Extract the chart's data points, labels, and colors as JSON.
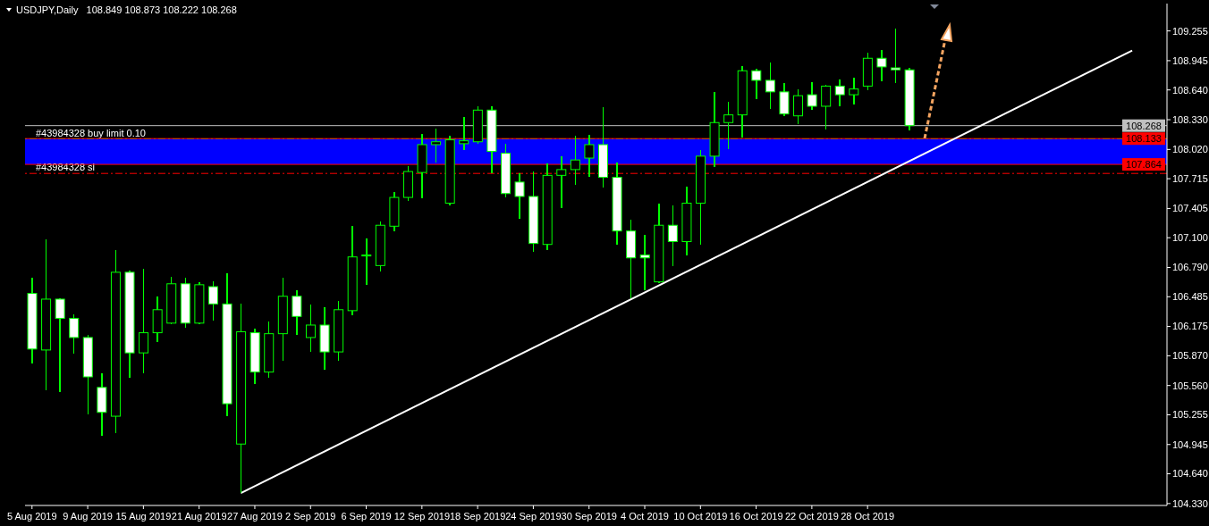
{
  "chart_data": {
    "type": "candlestick",
    "title": "USDJPY,Daily",
    "subtitle": "108.849 108.873 108.222 108.268",
    "color": "#00ff00",
    "categories": [
      "5 Aug 2019",
      null,
      null,
      null,
      "9 Aug 2019",
      null,
      null,
      null,
      "15 Aug 2019",
      null,
      null,
      null,
      "21 Aug 2019",
      null,
      null,
      null,
      "27 Aug 2019",
      null,
      null,
      null,
      "2 Sep 2019",
      null,
      null,
      null,
      "6 Sep 2019",
      null,
      null,
      null,
      "12 Sep 2019",
      null,
      null,
      null,
      "18 Sep 2019",
      null,
      null,
      null,
      "24 Sep 2019",
      null,
      null,
      null,
      "30 Sep 2019",
      null,
      null,
      null,
      "4 Oct 2019",
      null,
      null,
      null,
      "10 Oct 2019",
      null,
      null,
      null,
      "16 Oct 2019",
      null,
      null,
      null,
      "22 Oct 2019",
      null,
      null,
      null,
      "28 Oct 2019",
      null,
      null,
      null,
      null,
      null,
      null,
      null,
      null,
      null,
      null,
      null,
      null,
      null,
      null,
      null,
      null,
      null,
      null,
      null,
      null,
      null
    ],
    "ohlc": [
      [
        106.52,
        106.68,
        105.79,
        105.94
      ],
      [
        105.93,
        107.08,
        105.51,
        106.46
      ],
      [
        106.46,
        106.47,
        105.49,
        106.26
      ],
      [
        106.26,
        106.3,
        105.89,
        106.06
      ],
      [
        106.06,
        106.09,
        105.26,
        105.65
      ],
      [
        105.54,
        105.69,
        105.04,
        105.28
      ],
      [
        105.24,
        106.97,
        105.06,
        106.74
      ],
      [
        106.74,
        106.76,
        105.64,
        105.9
      ],
      [
        105.9,
        106.78,
        105.69,
        106.11
      ],
      [
        106.11,
        106.49,
        106.01,
        106.35
      ],
      [
        106.21,
        106.69,
        106.2,
        106.62
      ],
      [
        106.62,
        106.68,
        106.16,
        106.21
      ],
      [
        106.21,
        106.64,
        106.2,
        106.61
      ],
      [
        106.59,
        106.65,
        106.24,
        106.41
      ],
      [
        106.41,
        106.73,
        105.24,
        105.37
      ],
      [
        104.95,
        106.41,
        104.44,
        106.12
      ],
      [
        106.11,
        106.15,
        105.58,
        105.7
      ],
      [
        105.7,
        106.23,
        105.64,
        106.1
      ],
      [
        106.1,
        106.68,
        105.82,
        106.49
      ],
      [
        106.49,
        106.55,
        106.09,
        106.28
      ],
      [
        106.06,
        106.4,
        105.91,
        106.19
      ],
      [
        106.19,
        106.38,
        105.72,
        105.91
      ],
      [
        105.91,
        106.44,
        105.82,
        106.35
      ],
      [
        106.34,
        107.22,
        106.29,
        106.9
      ],
      [
        106.91,
        107.09,
        106.61,
        106.92
      ],
      [
        106.81,
        107.27,
        106.75,
        107.23
      ],
      [
        107.22,
        107.58,
        107.17,
        107.52
      ],
      [
        107.52,
        107.85,
        107.48,
        107.79
      ],
      [
        107.78,
        108.18,
        107.51,
        108.07
      ],
      [
        108.07,
        108.24,
        107.88,
        108.1
      ],
      [
        107.46,
        108.16,
        107.44,
        108.12
      ],
      [
        108.08,
        108.36,
        108.01,
        108.11
      ],
      [
        108.1,
        108.47,
        108.08,
        108.43
      ],
      [
        108.43,
        108.47,
        107.77,
        108.0
      ],
      [
        107.98,
        108.08,
        107.52,
        107.56
      ],
      [
        107.68,
        107.77,
        107.3,
        107.53
      ],
      [
        107.53,
        107.79,
        106.95,
        107.04
      ],
      [
        107.03,
        107.87,
        106.97,
        107.75
      ],
      [
        107.75,
        107.95,
        107.41,
        107.81
      ],
      [
        107.81,
        108.16,
        107.65,
        107.91
      ],
      [
        107.93,
        108.17,
        107.73,
        108.07
      ],
      [
        108.07,
        108.46,
        107.62,
        107.73
      ],
      [
        107.73,
        107.88,
        107.03,
        107.17
      ],
      [
        107.17,
        107.29,
        106.47,
        106.89
      ],
      [
        106.92,
        107.13,
        106.55,
        106.89
      ],
      [
        106.64,
        107.46,
        106.63,
        107.23
      ],
      [
        107.23,
        107.44,
        106.8,
        107.06
      ],
      [
        107.06,
        107.63,
        106.92,
        107.46
      ],
      [
        107.46,
        108.01,
        107.03,
        107.95
      ],
      [
        107.95,
        108.62,
        107.84,
        108.3
      ],
      [
        108.3,
        108.52,
        108.02,
        108.38
      ],
      [
        108.38,
        108.89,
        108.14,
        108.84
      ],
      [
        108.84,
        108.86,
        108.54,
        108.74
      ],
      [
        108.74,
        108.93,
        108.44,
        108.62
      ],
      [
        108.62,
        108.71,
        108.37,
        108.39
      ],
      [
        108.37,
        108.65,
        108.28,
        108.58
      ],
      [
        108.59,
        108.72,
        108.43,
        108.47
      ],
      [
        108.47,
        108.69,
        108.23,
        108.68
      ],
      [
        108.68,
        108.75,
        108.47,
        108.59
      ],
      [
        108.59,
        108.77,
        108.49,
        108.65
      ],
      [
        108.68,
        109.03,
        108.64,
        108.97
      ],
      [
        108.97,
        109.06,
        108.73,
        108.88
      ],
      [
        108.87,
        109.28,
        108.71,
        108.85
      ],
      [
        108.849,
        108.873,
        108.222,
        108.268
      ],
      null,
      null,
      null,
      null,
      null,
      null,
      null,
      null,
      null,
      null,
      null,
      null,
      null,
      null,
      null,
      null,
      null,
      null
    ],
    "series": [
      {
        "type": "line",
        "color": "#ffffff",
        "values": [
          null,
          null,
          null,
          null,
          null,
          null,
          null,
          null,
          null,
          null,
          null,
          null,
          null,
          null,
          null,
          104.44,
          null,
          null,
          null,
          null,
          null,
          null,
          null,
          null,
          null,
          null,
          null,
          null,
          null,
          null,
          null,
          null,
          null,
          null,
          null,
          null,
          null,
          null,
          null,
          null,
          null,
          null,
          null,
          null,
          null,
          null,
          null,
          null,
          null,
          null,
          null,
          null,
          null,
          null,
          null,
          null,
          null,
          null,
          null,
          null,
          null,
          null,
          null,
          null,
          null,
          null,
          null,
          null,
          null,
          null,
          null,
          null,
          null,
          null,
          null,
          null,
          null,
          null,
          null,
          109.05,
          null,
          null
        ]
      }
    ],
    "ylim": [
      104.31,
      109.54
    ],
    "yticks": [
      109.255,
      108.945,
      {
        "value": 108.64,
        "label": "108.640"
      },
      {
        "value": 108.33,
        "label": "108.330"
      },
      {
        "value": 108.02,
        "label": "108.020"
      },
      107.715,
      107.405,
      {
        "value": 107.1,
        "label": "107.100"
      },
      {
        "value": 106.79,
        "label": "106.790"
      },
      106.485,
      106.175,
      {
        "value": 105.87,
        "label": "105.870"
      },
      {
        "value": 105.56,
        "label": "105.560"
      },
      105.255,
      104.945,
      {
        "value": 104.64,
        "label": "104.640"
      },
      {
        "value": 104.33,
        "label": "104.330"
      }
    ],
    "ref_lines": [
      {
        "axis": "y",
        "value": 108.268,
        "label": "108.268",
        "color": "#c0c0c0"
      },
      {
        "axis": "y",
        "value": 108.133,
        "label": "108.133",
        "color": "#ff0000"
      },
      {
        "axis": "y",
        "value": 108.13,
        "label": "#43984328 buy limit 0.10",
        "color": "#00ff00",
        "line_style": "dashed"
      },
      {
        "axis": "y",
        "value": 107.864,
        "label": "107.864",
        "color": "#ff0000"
      },
      {
        "axis": "y",
        "value": 107.77,
        "label": "#43984328 sl",
        "color": "#ff0000",
        "line_style": "dashed"
      }
    ],
    "bands": [
      {
        "axis": "y",
        "from": 107.864,
        "to": 108.133,
        "color": "#0000ff"
      }
    ],
    "grid": false
  }
}
